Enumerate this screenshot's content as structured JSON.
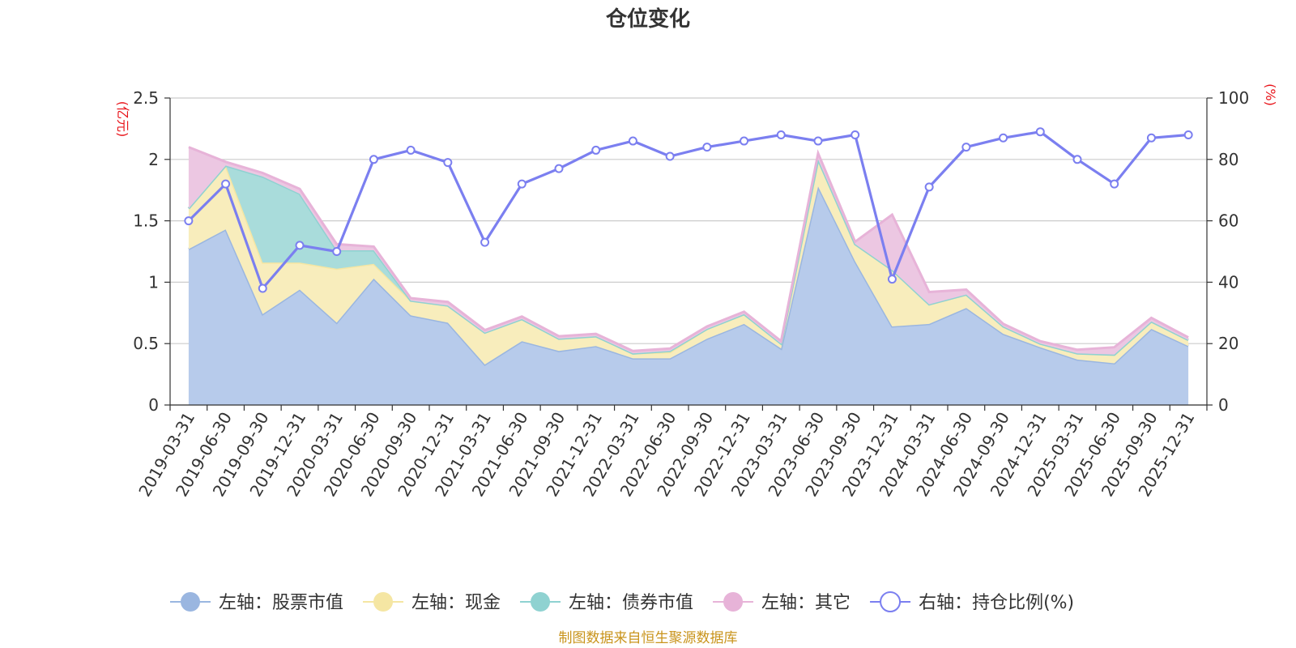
{
  "chart_data": {
    "type": "area",
    "title": "仓位变化",
    "left_axis_unit": "(亿元)",
    "right_axis_unit": "(%)",
    "left_ylim": [
      0,
      2.5
    ],
    "left_ticks": [
      "0",
      "0.5",
      "1",
      "1.5",
      "2",
      "2.5"
    ],
    "right_ylim": [
      0,
      100
    ],
    "right_ticks": [
      "0",
      "20",
      "40",
      "60",
      "80",
      "100"
    ],
    "grid": true,
    "legend_position": "bottom",
    "categories": [
      "2019-03-31",
      "2019-06-30",
      "2019-09-30",
      "2019-12-31",
      "2020-03-31",
      "2020-06-30",
      "2020-09-30",
      "2020-12-31",
      "2021-03-31",
      "2021-06-30",
      "2021-09-30",
      "2021-12-31",
      "2022-03-31",
      "2022-06-30",
      "2022-09-30",
      "2022-12-31",
      "2023-03-31",
      "2023-06-30",
      "2023-09-30",
      "2023-12-31",
      "2024-03-31",
      "2024-06-30",
      "2024-09-30",
      "2024-12-31",
      "2025-03-31",
      "2025-06-30",
      "2025-09-30",
      "2025-12-31"
    ],
    "series": [
      {
        "name": "左轴：股票市值",
        "axis": "left",
        "kind": "stacked-area",
        "color": "#9ab6e0",
        "fill": "#b7cbeb",
        "values": [
          1.27,
          1.43,
          0.74,
          0.94,
          0.67,
          1.03,
          0.73,
          0.67,
          0.33,
          0.52,
          0.44,
          0.48,
          0.38,
          0.38,
          0.54,
          0.66,
          0.46,
          1.78,
          1.17,
          0.64,
          0.66,
          0.79,
          0.58,
          0.47,
          0.37,
          0.34,
          0.62,
          0.48
        ]
      },
      {
        "name": "左轴：现金",
        "axis": "left",
        "kind": "stacked-area",
        "color": "#f5e6a3",
        "fill": "#f8edbc",
        "values": [
          0.33,
          0.52,
          0.42,
          0.22,
          0.44,
          0.12,
          0.12,
          0.14,
          0.26,
          0.18,
          0.1,
          0.08,
          0.04,
          0.05,
          0.08,
          0.08,
          0.04,
          0.22,
          0.14,
          0.46,
          0.16,
          0.11,
          0.06,
          0.03,
          0.05,
          0.07,
          0.06,
          0.05
        ]
      },
      {
        "name": "左轴：债券市值",
        "axis": "left",
        "kind": "stacked-area",
        "color": "#8fd2d1",
        "fill": "#a9dcdb",
        "values": [
          0,
          0,
          0.7,
          0.56,
          0.15,
          0.11,
          0,
          0,
          0,
          0,
          0,
          0,
          0,
          0.01,
          0,
          0,
          0,
          0,
          0,
          0,
          0,
          0,
          0,
          0,
          0,
          0,
          0,
          0
        ]
      },
      {
        "name": "左轴：其它",
        "axis": "left",
        "kind": "stacked-area",
        "color": "#e7b3d8",
        "fill": "#ecc7e2",
        "values": [
          0.5,
          0.03,
          0.03,
          0.04,
          0.05,
          0.03,
          0.02,
          0.03,
          0.02,
          0.02,
          0.02,
          0.02,
          0.02,
          0.02,
          0.02,
          0.02,
          0.02,
          0.05,
          0.02,
          0.45,
          0.1,
          0.04,
          0.02,
          0.02,
          0.03,
          0.06,
          0.03,
          0.02
        ]
      },
      {
        "name": "右轴：持仓比例(%)",
        "axis": "right",
        "kind": "line",
        "color": "#7b7ff0",
        "values": [
          60,
          72,
          38,
          52,
          50,
          80,
          83,
          79,
          53,
          72,
          77,
          83,
          86,
          81,
          84,
          86,
          88,
          86,
          88,
          41,
          71,
          84,
          87,
          89,
          80,
          72,
          87,
          88
        ]
      }
    ],
    "source_note": "制图数据来自恒生聚源数据库"
  }
}
